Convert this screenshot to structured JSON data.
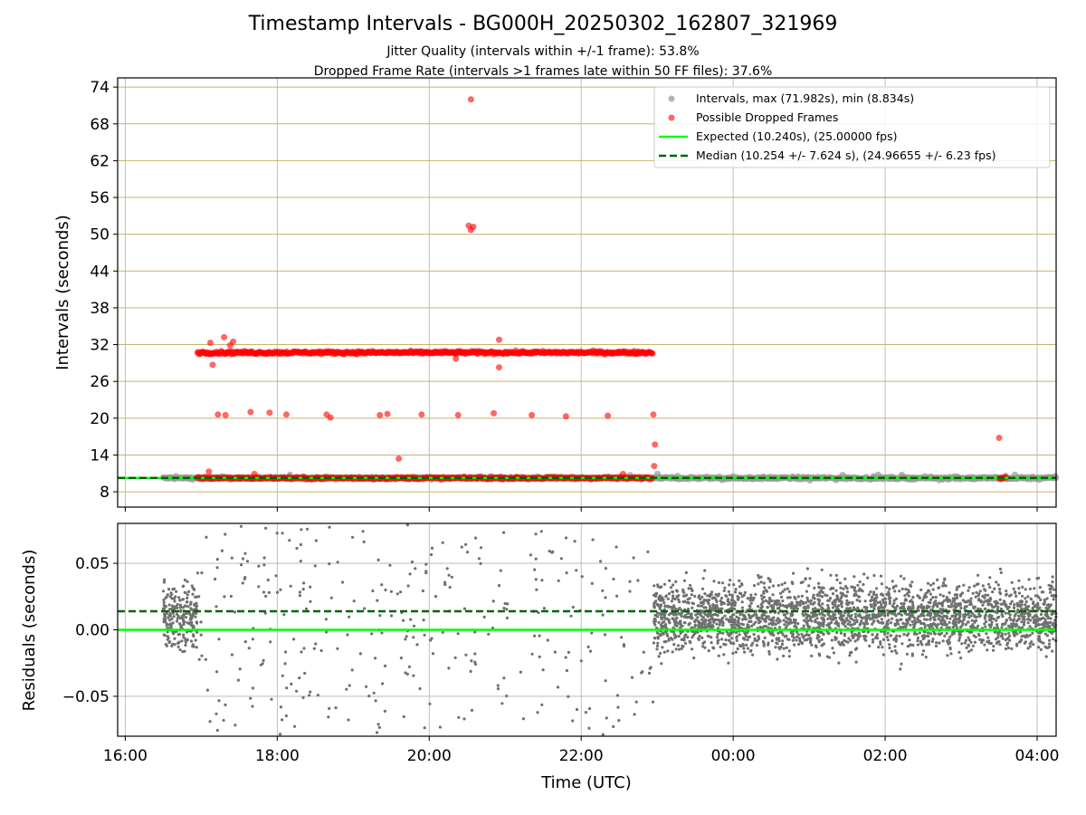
{
  "chart_data": [
    {
      "type": "scatter",
      "title": "Timestamp Intervals - BG000H_20250302_162807_321969",
      "subtitle_1": "Jitter Quality (intervals within +/-1 frame): 53.8%",
      "subtitle_2": "Dropped Frame Rate (intervals >1 frames late within 50 FF files): 37.6%",
      "ylabel": "Intervals (seconds)",
      "ylim": [
        5.5,
        75.5
      ],
      "yticks": [
        "8",
        "14",
        "20",
        "26",
        "32",
        "38",
        "44",
        "50",
        "56",
        "62",
        "68",
        "74"
      ],
      "ytick_values": [
        8,
        14,
        20,
        26,
        32,
        38,
        44,
        50,
        56,
        62,
        68,
        74
      ],
      "grid": "horizontal lines (tan), vertical lines (grey)",
      "legend_position": "top-right",
      "legend": [
        "Intervals, max (71.982s), min (8.834s)",
        "Possible Dropped Frames",
        "Expected (10.240s), (25.00000 fps)",
        "Median (10.254 +/- 7.624 s), (24.96655 +/- 6.23 fps)"
      ],
      "expected_interval": 10.24,
      "median_interval": 10.254,
      "interval_max": 71.982,
      "interval_min": 8.834,
      "series": [
        {
          "name": "Intervals, max (71.982s), min (8.834s)",
          "color": "#999999",
          "band": {
            "x_start_hours": 16.5,
            "x_end_hours": 28.25,
            "y_center": 10.24,
            "y_spread": 0.35
          }
        },
        {
          "name": "Possible Dropped Frames",
          "color": "#ff0000",
          "bands": [
            {
              "x_start_hours": 16.95,
              "x_end_hours": 22.95,
              "y_center": 10.24
            },
            {
              "x_start_hours": 16.95,
              "x_end_hours": 22.95,
              "y_center": 30.7
            },
            {
              "x_start_hours": 27.5,
              "x_end_hours": 27.6,
              "y_center": 10.24
            }
          ],
          "points": [
            {
              "x": 20.55,
              "y": 71.98
            },
            {
              "x": 20.52,
              "y": 51.4
            },
            {
              "x": 20.58,
              "y": 51.2
            },
            {
              "x": 20.55,
              "y": 50.7
            },
            {
              "x": 17.12,
              "y": 32.3
            },
            {
              "x": 17.3,
              "y": 33.2
            },
            {
              "x": 17.42,
              "y": 32.5
            },
            {
              "x": 17.38,
              "y": 31.9
            },
            {
              "x": 20.92,
              "y": 32.8
            },
            {
              "x": 17.15,
              "y": 28.7
            },
            {
              "x": 20.92,
              "y": 28.3
            },
            {
              "x": 20.35,
              "y": 29.7
            },
            {
              "x": 17.22,
              "y": 20.6
            },
            {
              "x": 17.32,
              "y": 20.5
            },
            {
              "x": 17.65,
              "y": 21.0
            },
            {
              "x": 17.9,
              "y": 20.9
            },
            {
              "x": 18.12,
              "y": 20.6
            },
            {
              "x": 18.65,
              "y": 20.6
            },
            {
              "x": 18.7,
              "y": 20.1
            },
            {
              "x": 19.35,
              "y": 20.5
            },
            {
              "x": 19.45,
              "y": 20.7
            },
            {
              "x": 19.9,
              "y": 20.6
            },
            {
              "x": 20.38,
              "y": 20.5
            },
            {
              "x": 20.85,
              "y": 20.8
            },
            {
              "x": 21.35,
              "y": 20.5
            },
            {
              "x": 21.8,
              "y": 20.3
            },
            {
              "x": 22.35,
              "y": 20.4
            },
            {
              "x": 22.95,
              "y": 20.6
            },
            {
              "x": 19.6,
              "y": 13.4
            },
            {
              "x": 22.97,
              "y": 15.7
            },
            {
              "x": 22.96,
              "y": 12.2
            },
            {
              "x": 27.5,
              "y": 16.8
            },
            {
              "x": 17.1,
              "y": 11.3
            },
            {
              "x": 17.7,
              "y": 10.9
            },
            {
              "x": 22.55,
              "y": 10.9
            }
          ]
        },
        {
          "name": "Expected (10.240s), (25.00000 fps)",
          "color": "#00ff00",
          "y": 10.24
        },
        {
          "name": "Median (10.254 +/- 7.624 s), (24.96655 +/- 6.23 fps)",
          "color": "#006400",
          "y": 10.254
        }
      ]
    },
    {
      "type": "scatter",
      "ylabel": "Residuals (seconds)",
      "xlabel": "Time (UTC)",
      "ylim": [
        -0.08,
        0.08
      ],
      "yticks": [
        "−0.05",
        "0.00",
        "0.05"
      ],
      "ytick_values": [
        -0.05,
        0,
        0.05
      ],
      "xlim_hours": [
        15.9,
        28.25
      ],
      "xticks": [
        "16:00",
        "18:00",
        "20:00",
        "22:00",
        "00:00",
        "02:00",
        "04:00"
      ],
      "xtick_values_hours": [
        16,
        18,
        20,
        22,
        24,
        26,
        28
      ],
      "grid": "on",
      "series": [
        {
          "name": "residuals",
          "color": "#707070",
          "bands": [
            {
              "x_start_hours": 16.5,
              "x_end_hours": 16.95,
              "density": "dense"
            },
            {
              "x_start_hours": 16.95,
              "x_end_hours": 22.95,
              "density": "sparse"
            },
            {
              "x_start_hours": 22.95,
              "x_end_hours": 28.25,
              "density": "dense"
            }
          ]
        },
        {
          "name": "expected",
          "color": "#00ff00",
          "y": 0.0
        },
        {
          "name": "median",
          "color": "#006400",
          "y": 0.014
        }
      ]
    }
  ]
}
